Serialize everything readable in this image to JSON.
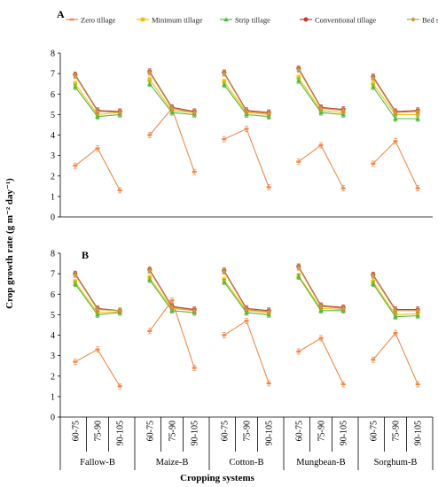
{
  "legend": {
    "items": [
      {
        "label": "Zero tillage",
        "color": "#f08a4b",
        "marker": "dash"
      },
      {
        "label": "Minimum tillage",
        "color": "#f2c200",
        "marker": "square"
      },
      {
        "label": "Strip tillage",
        "color": "#53b84a",
        "marker": "triangle"
      },
      {
        "label": "Conventional tillage",
        "color": "#c0392b",
        "marker": "circle"
      },
      {
        "label": "Bed sowing",
        "color": "#c89b4a",
        "marker": "diamond"
      }
    ]
  },
  "chart_data": [
    {
      "type": "line",
      "panel_label": "A",
      "ylabel": "Crop growth rate (g m⁻² day⁻¹)",
      "ylim": [
        0,
        8
      ],
      "yticks": [
        "0",
        "1",
        "2",
        "3",
        "4",
        "5",
        "6",
        "7",
        "8"
      ],
      "groups": [
        "Fallow-B",
        "Maize-B",
        "Cotton-B",
        "Mungbean-B",
        "Sorghum-B"
      ],
      "categories": [
        "60-75",
        "75-90",
        "90-105"
      ],
      "series": [
        {
          "name": "Zero tillage",
          "color": "#f08a4b",
          "values": [
            [
              2.5,
              3.35,
              1.3
            ],
            [
              4.0,
              5.3,
              2.2
            ],
            [
              3.8,
              4.3,
              1.45
            ],
            [
              2.7,
              3.5,
              1.4
            ],
            [
              2.6,
              3.7,
              1.4
            ]
          ]
        },
        {
          "name": "Minimum tillage",
          "color": "#f2c200",
          "values": [
            [
              6.5,
              5.0,
              5.1
            ],
            [
              6.7,
              5.2,
              5.1
            ],
            [
              6.6,
              5.1,
              5.0
            ],
            [
              6.8,
              5.2,
              5.1
            ],
            [
              6.5,
              5.0,
              5.0
            ]
          ]
        },
        {
          "name": "Strip tillage",
          "color": "#53b84a",
          "values": [
            [
              6.35,
              4.9,
              5.0
            ],
            [
              6.5,
              5.1,
              5.0
            ],
            [
              6.45,
              5.0,
              4.9
            ],
            [
              6.65,
              5.1,
              5.0
            ],
            [
              6.35,
              4.8,
              4.8
            ]
          ]
        },
        {
          "name": "Conventional tillage",
          "color": "#c0392b",
          "values": [
            [
              6.95,
              5.2,
              5.15
            ],
            [
              7.1,
              5.35,
              5.15
            ],
            [
              7.05,
              5.2,
              5.1
            ],
            [
              7.25,
              5.35,
              5.25
            ],
            [
              6.85,
              5.15,
              5.2
            ]
          ]
        },
        {
          "name": "Bed sowing",
          "color": "#c89b4a",
          "values": [
            [
              6.9,
              5.15,
              5.1
            ],
            [
              7.05,
              5.3,
              5.1
            ],
            [
              7.0,
              5.15,
              5.05
            ],
            [
              7.2,
              5.3,
              5.2
            ],
            [
              6.8,
              5.1,
              5.15
            ]
          ]
        }
      ]
    },
    {
      "type": "line",
      "panel_label": "B",
      "ylabel": "Crop growth rate (g m⁻² day⁻¹)",
      "ylim": [
        0,
        8
      ],
      "yticks": [
        "0",
        "1",
        "2",
        "3",
        "4",
        "5",
        "6",
        "7",
        "8"
      ],
      "groups": [
        "Fallow-B",
        "Maize-B",
        "Cotton-B",
        "Mungbean-B",
        "Sorghum-B"
      ],
      "categories": [
        "60-75",
        "75-90",
        "90-105"
      ],
      "series": [
        {
          "name": "Zero tillage",
          "color": "#f08a4b",
          "values": [
            [
              2.7,
              3.3,
              1.5
            ],
            [
              4.2,
              5.7,
              2.4
            ],
            [
              4.0,
              4.7,
              1.65
            ],
            [
              3.2,
              3.85,
              1.6
            ],
            [
              2.8,
              4.1,
              1.6
            ]
          ]
        },
        {
          "name": "Minimum tillage",
          "color": "#f2c200",
          "values": [
            [
              6.6,
              5.1,
              5.15
            ],
            [
              6.8,
              5.3,
              5.2
            ],
            [
              6.7,
              5.2,
              5.1
            ],
            [
              6.9,
              5.3,
              5.25
            ],
            [
              6.6,
              5.0,
              5.05
            ]
          ]
        },
        {
          "name": "Strip tillage",
          "color": "#53b84a",
          "values": [
            [
              6.5,
              5.0,
              5.1
            ],
            [
              6.7,
              5.2,
              5.1
            ],
            [
              6.6,
              5.1,
              5.0
            ],
            [
              6.85,
              5.2,
              5.2
            ],
            [
              6.5,
              4.9,
              4.95
            ]
          ]
        },
        {
          "name": "Conventional tillage",
          "color": "#c0392b",
          "values": [
            [
              7.0,
              5.3,
              5.2
            ],
            [
              7.2,
              5.4,
              5.25
            ],
            [
              7.15,
              5.3,
              5.2
            ],
            [
              7.35,
              5.45,
              5.35
            ],
            [
              6.95,
              5.25,
              5.25
            ]
          ]
        },
        {
          "name": "Bed sowing",
          "color": "#c89b4a",
          "values": [
            [
              6.95,
              5.25,
              5.2
            ],
            [
              7.15,
              5.35,
              5.2
            ],
            [
              7.1,
              5.25,
              5.15
            ],
            [
              7.3,
              5.4,
              5.3
            ],
            [
              6.9,
              5.2,
              5.2
            ]
          ]
        }
      ]
    }
  ],
  "xaxis_title": "Cropping systems"
}
